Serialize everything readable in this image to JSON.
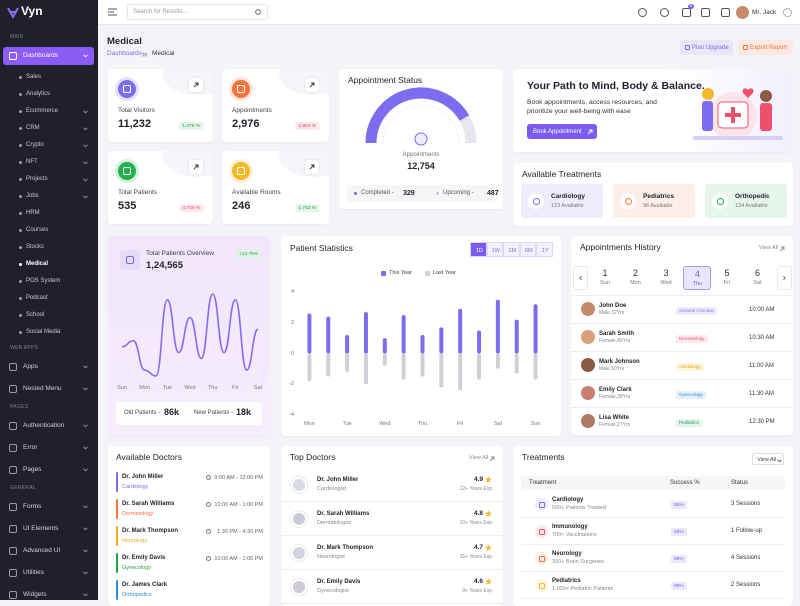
{
  "sidebar": {
    "logo": "Vyn",
    "sections": [
      {
        "label": "MAIN",
        "items": [
          {
            "label": "Dashboards",
            "active": true,
            "expandable": true,
            "children": [
              {
                "label": "Sales"
              },
              {
                "label": "Analytics"
              },
              {
                "label": "Ecommerce",
                "expandable": true
              },
              {
                "label": "CRM",
                "expandable": true
              },
              {
                "label": "Crypto",
                "expandable": true
              },
              {
                "label": "NFT",
                "expandable": true
              },
              {
                "label": "Projects",
                "expandable": true
              },
              {
                "label": "Jobs",
                "expandable": true
              },
              {
                "label": "HRM"
              },
              {
                "label": "Courses"
              },
              {
                "label": "Stocks"
              },
              {
                "label": "Medical",
                "active": true
              },
              {
                "label": "POS System"
              },
              {
                "label": "Podcast"
              },
              {
                "label": "School"
              },
              {
                "label": "Social Media"
              }
            ]
          }
        ]
      },
      {
        "label": "WEB APPS",
        "items": [
          {
            "label": "Apps",
            "expandable": true
          },
          {
            "label": "Nested Menu",
            "expandable": true
          }
        ]
      },
      {
        "label": "PAGES",
        "items": [
          {
            "label": "Authentication",
            "expandable": true
          },
          {
            "label": "Error",
            "expandable": true
          },
          {
            "label": "Pages",
            "expandable": true
          }
        ]
      },
      {
        "label": "GENERAL",
        "items": [
          {
            "label": "Forms",
            "expandable": true
          },
          {
            "label": "UI Elements",
            "expandable": true
          },
          {
            "label": "Advanced UI",
            "expandable": true
          },
          {
            "label": "Utilities",
            "expandable": true
          },
          {
            "label": "Widgets",
            "expandable": true
          }
        ]
      }
    ]
  },
  "header": {
    "search_placeholder": "Search for Results...",
    "cart_count": "5",
    "user": "Mr. Jack"
  },
  "page": {
    "title": "Medical",
    "breadcrumb": [
      "Dashboards",
      "Medical"
    ],
    "actions": [
      "Plan Upgrade",
      "Export Report"
    ]
  },
  "stats": [
    {
      "label": "Total Visitors",
      "value": "11,232",
      "change": "1.376 %",
      "trend": "up",
      "color": "#7c6cf0"
    },
    {
      "label": "Appointments",
      "value": "2,976",
      "change": "2.853 %",
      "trend": "down",
      "color": "#f4743b"
    },
    {
      "label": "Total Patients",
      "value": "535",
      "change": "4.734 %",
      "trend": "down",
      "color": "#22b14c"
    },
    {
      "label": "Available Rooms",
      "value": "246",
      "change": "1.752 %",
      "trend": "up",
      "color": "#f5b829"
    }
  ],
  "appointment_status": {
    "title": "Appointment Status",
    "label": "Appointments",
    "value": "12,754",
    "items": [
      {
        "label": "Completed -",
        "value": "329",
        "color": "#7c6cf0"
      },
      {
        "label": "Upcoming -",
        "value": "487",
        "color": "#c9c9d4"
      }
    ]
  },
  "promo": {
    "title": "Your Path to Mind, Body & Balance.",
    "text": "Book appointments, access resources, and prioritize your well-being with ease",
    "button": "Book Appointment"
  },
  "available_treatments": {
    "title": "Available Treatments",
    "items": [
      {
        "name": "Cardiology",
        "count": "123 Available",
        "color": "#7c6cf0",
        "bg": "#efedfd"
      },
      {
        "name": "Pediatrics",
        "count": "96 Available",
        "color": "#f4743b",
        "bg": "#fdeee8"
      },
      {
        "name": "Orthopedic",
        "count": "134 Available",
        "color": "#22b14c",
        "bg": "#e7f6ea"
      }
    ]
  },
  "chart_data": [
    {
      "type": "line",
      "title": "Total Patients Overview",
      "value": "1,24,565",
      "change": "+12.75%",
      "color": "#8b6cf0",
      "categories": [
        "Sun",
        null,
        "Mon",
        null,
        "Tue",
        null,
        "Wed",
        null,
        "Thu",
        null,
        "Fri",
        null,
        "Sat"
      ],
      "values": [
        45,
        50,
        25,
        20,
        85,
        40,
        70,
        35,
        90,
        40,
        85,
        25,
        60
      ],
      "footer": [
        {
          "label": "Old Patients -",
          "value": "86k"
        },
        {
          "label": "New Patients -",
          "value": "18k"
        }
      ]
    },
    {
      "type": "bar",
      "title": "Patient Statistics",
      "ranges": [
        "1D",
        "1W",
        "1M",
        "6M",
        "1Y"
      ],
      "active_range": 0,
      "categories": [
        "Mon",
        null,
        "Tue",
        null,
        "Wed",
        null,
        "Thu",
        null,
        "Fri",
        null,
        "Sat",
        null,
        "Sun"
      ],
      "series": [
        {
          "name": "This Year",
          "color": "#7c6cf0",
          "values": [
            2.6,
            2.4,
            1.2,
            2.7,
            1.0,
            2.5,
            1.2,
            1.7,
            2.9,
            1.5,
            3.5,
            2.2,
            3.2
          ]
        },
        {
          "name": "Last Year",
          "color": "#cfcfd6",
          "values": [
            -1.8,
            -1.5,
            -1.2,
            -2.0,
            -0.8,
            -1.7,
            -1.5,
            -2.2,
            -2.4,
            -1.7,
            -1.0,
            -1.3,
            -1.7
          ]
        }
      ],
      "ylim": [
        -4,
        4
      ],
      "yticks": [
        4,
        2,
        0,
        -2,
        -4
      ],
      "grid": false
    }
  ],
  "appointments_history": {
    "title": "Appointments History",
    "view_all": "View All",
    "active_day": 3,
    "days": [
      {
        "day": "1",
        "name": "Sun"
      },
      {
        "day": "2",
        "name": "Mon"
      },
      {
        "day": "3",
        "name": "Wed"
      },
      {
        "day": "4",
        "name": "Thu"
      },
      {
        "day": "5",
        "name": "Fri"
      },
      {
        "day": "6",
        "name": "Sat"
      }
    ],
    "rows": [
      {
        "name": "John Doe",
        "info": "Male,32Yrs",
        "tag": "General Checkup",
        "color": "#7c6cf0",
        "time": "10:00 AM"
      },
      {
        "name": "Sarah Smith",
        "info": "Female,45Yrs",
        "tag": "Dermatology",
        "color": "#f0506e",
        "time": "10:30 AM"
      },
      {
        "name": "Mark Johnson",
        "info": "Male,50Yrs",
        "tag": "Cardiology",
        "color": "#e0a800",
        "time": "11:00 AM"
      },
      {
        "name": "Emily Clark",
        "info": "Female,38Yrs",
        "tag": "Gynecology",
        "color": "#2b8fd6",
        "time": "11:30 AM"
      },
      {
        "name": "Lisa White",
        "info": "Female,27Yrs",
        "tag": "Pediatrics",
        "color": "#22a04b",
        "time": "12:30 PM"
      }
    ]
  },
  "doctors": {
    "title": "Available Doctors",
    "rows": [
      {
        "name": "Dr. John Miller",
        "dept": "Cardiology",
        "time": "9:00 AM - 12:00 PM",
        "color": "#7c6cf0"
      },
      {
        "name": "Dr. Sarah Williams",
        "dept": "Dermatology",
        "time": "10:00 AM - 1:00 PM",
        "color": "#f4743b"
      },
      {
        "name": "Dr. Mark Thompson",
        "dept": "Neurology",
        "time": "1:30 PM - 4:30 PM",
        "color": "#f5a623"
      },
      {
        "name": "Dr. Emily Davis",
        "dept": "Gynecology",
        "time": "10:00 AM - 1:00 PM",
        "color": "#22a04b"
      },
      {
        "name": "Dr. James Clark",
        "dept": "Orthopedics",
        "color": "#2b8fd6"
      }
    ]
  },
  "top_doctors": {
    "title": "Top Doctors",
    "view_all": "View All",
    "rows": [
      {
        "name": "Dr. John Miller",
        "specialty": "Cardiologist",
        "rating": "4.9",
        "experience": "12+ Years Exp"
      },
      {
        "name": "Dr. Sarah Williams",
        "specialty": "Dermatologist",
        "rating": "4.8",
        "experience": "10+ Years Exp"
      },
      {
        "name": "Dr. Mark Thompson",
        "specialty": "Neurologist",
        "rating": "4.7",
        "experience": "15+ Years Exp"
      },
      {
        "name": "Dr. Emily Davis",
        "specialty": "Gynecologist",
        "rating": "4.6",
        "experience": "9+ Years Exp"
      }
    ]
  },
  "treatments": {
    "title": "Treatments",
    "view_all": "View All",
    "columns": [
      "Treatment",
      "Success %",
      "Status"
    ],
    "rows": [
      {
        "name": "Cardiology",
        "detail": "500+ Patients Treated",
        "success": "95%",
        "status": "3 Sessions",
        "color": "#7c6cf0"
      },
      {
        "name": "Immunology",
        "detail": "700+ Vaccinations",
        "success": "92%",
        "status": "1 Follow-up",
        "color": "#f0506e"
      },
      {
        "name": "Neurology",
        "detail": "300+ Brain Surgeries",
        "success": "88%",
        "status": "4 Sessions",
        "color": "#f4743b"
      },
      {
        "name": "Pediatrics",
        "detail": "1,000+ Pediatric Patients",
        "success": "90%",
        "status": "2 Sessions",
        "color": "#f5b829"
      }
    ]
  }
}
